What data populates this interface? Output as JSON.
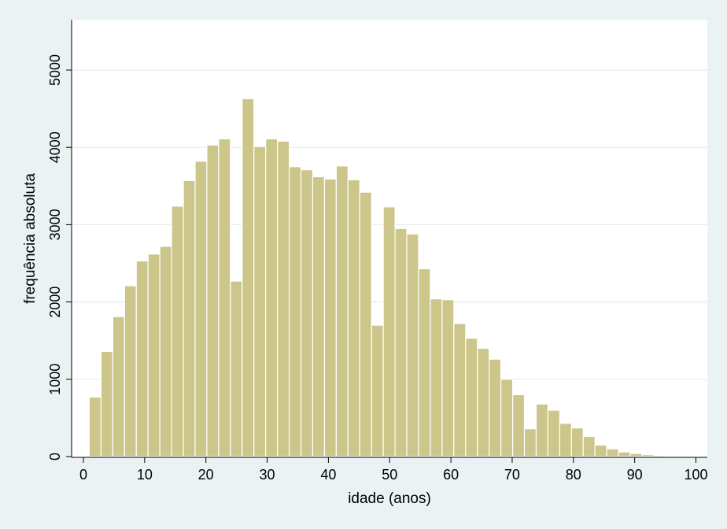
{
  "chart_data": {
    "type": "bar",
    "subtype": "histogram",
    "title": "",
    "xlabel": "idade (anos)",
    "ylabel": "frequência absoluta",
    "xlim": [
      0,
      100
    ],
    "ylim": [
      0,
      5000
    ],
    "xticks": [
      0,
      10,
      20,
      30,
      40,
      50,
      60,
      70,
      80,
      90,
      100
    ],
    "yticks": [
      0,
      1000,
      2000,
      3000,
      4000,
      5000
    ],
    "grid": true,
    "legend": "none",
    "bar_color": "#cdc68a",
    "bar_edge_color": "#ffffff",
    "plot_background": "#ffffff",
    "figure_background": "#eaf2f3",
    "bin_width": 1.92,
    "bin_start": 0.96,
    "frequencies": [
      770,
      1360,
      1810,
      2210,
      2530,
      2620,
      2720,
      3240,
      3570,
      3820,
      4030,
      4110,
      2270,
      4630,
      4010,
      4110,
      4080,
      3750,
      3710,
      3620,
      3590,
      3760,
      3580,
      3420,
      1700,
      3230,
      2950,
      2880,
      2430,
      2040,
      2030,
      1720,
      1530,
      1400,
      1260,
      1000,
      800,
      360,
      680,
      600,
      430,
      370,
      260,
      150,
      100,
      60,
      40,
      25,
      15,
      10
    ]
  }
}
